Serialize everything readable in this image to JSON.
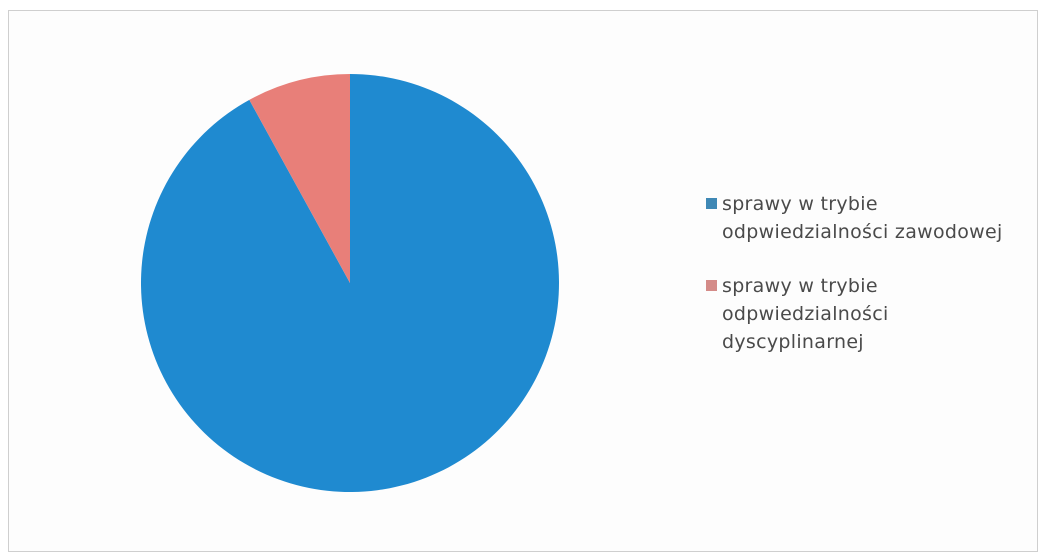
{
  "chart_data": {
    "type": "pie",
    "title": "",
    "start_angle_deg": 0,
    "direction": "clockwise",
    "categories": [
      "sprawy w trybie odpwiedzialności zawodowej",
      "sprawy w trybie odpwiedzialności dyscyplinarnej"
    ],
    "values": [
      92,
      8
    ],
    "colors": [
      "#1f8ad0",
      "#e87f79"
    ],
    "legend_position": "right",
    "legend": [
      {
        "label": "sprawy w trybie\nodpwiedzialności zawodowej",
        "color": "#3f88b5"
      },
      {
        "label": "sprawy w trybie\nodpwiedzialności\ndyscyplinarnej",
        "color": "#d48b88"
      }
    ]
  }
}
